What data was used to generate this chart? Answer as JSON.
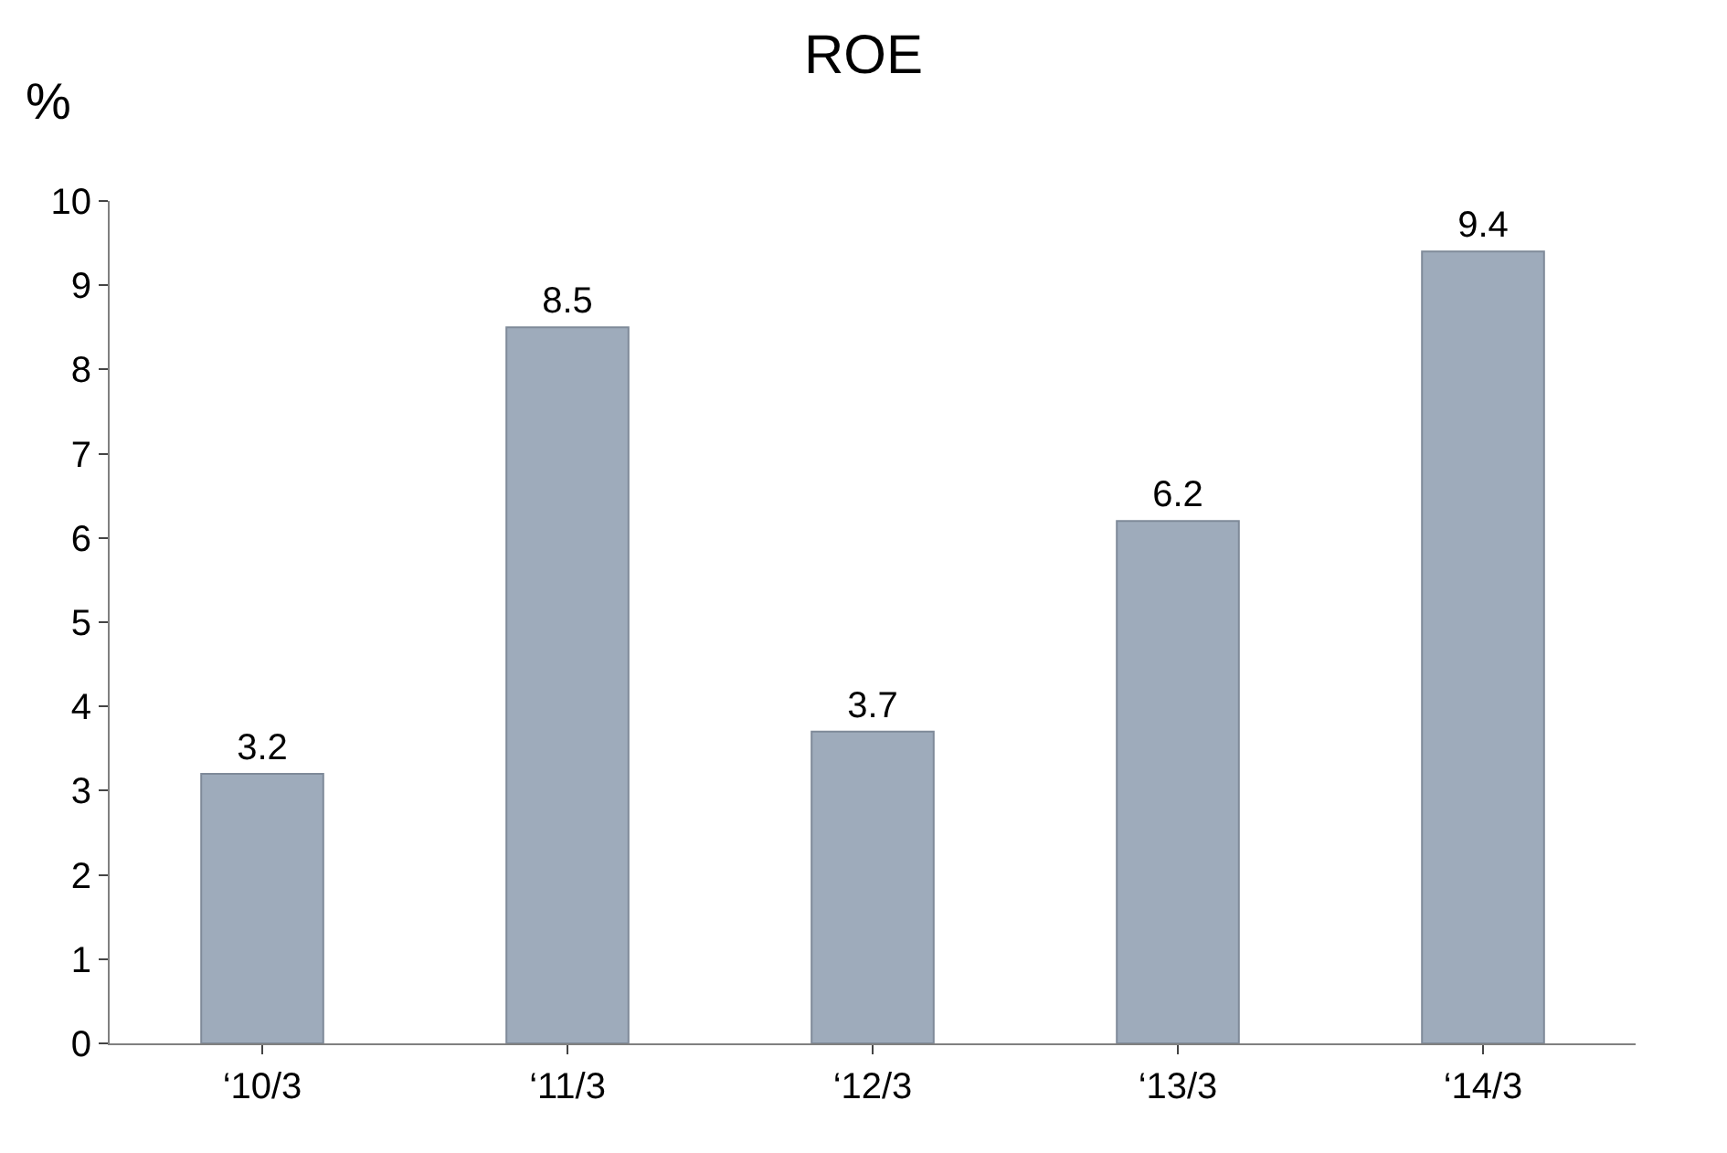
{
  "chart_data": {
    "type": "bar",
    "title": "ROE",
    "ylabel": "%",
    "categories": [
      "‘10/3",
      "‘11/3",
      "‘12/3",
      "‘13/3",
      "‘14/3"
    ],
    "values": [
      3.2,
      8.5,
      3.7,
      6.2,
      9.4
    ],
    "color": "#9eabbb",
    "ylim": [
      0,
      10
    ],
    "yticks": [
      0,
      1,
      2,
      3,
      4,
      5,
      6,
      7,
      8,
      9,
      10
    ],
    "data_labels": true
  }
}
